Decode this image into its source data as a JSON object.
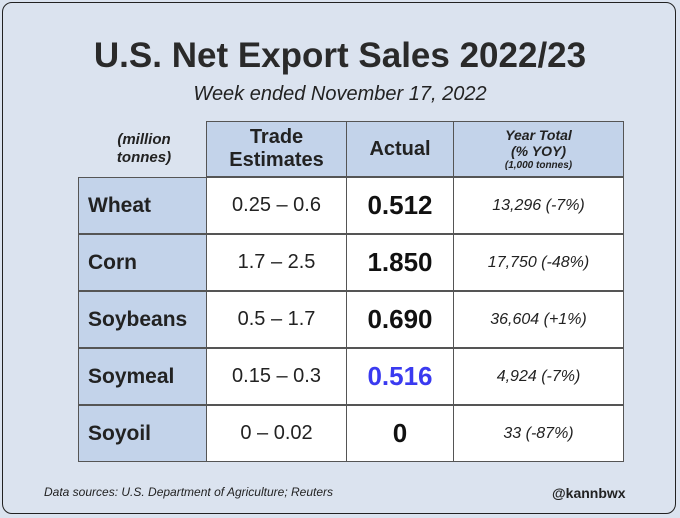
{
  "title": "U.S. Net Export Sales 2022/23",
  "subtitle": "Week ended November 17, 2022",
  "header": {
    "unit_line1": "(million",
    "unit_line2": "tonnes)",
    "trade_line1": "Trade",
    "trade_line2": "Estimates",
    "actual": "Actual",
    "year_line1": "Year Total",
    "year_line2": "(% YOY)",
    "year_line3": "(1,000 tonnes)"
  },
  "rows": [
    {
      "commodity": "Wheat",
      "trade_estimates": "0.25 – 0.6",
      "actual": "0.512",
      "year_total": "13,296 (-7%)",
      "actual_color": "#111111"
    },
    {
      "commodity": "Corn",
      "trade_estimates": "1.7 – 2.5",
      "actual": "1.850",
      "year_total": "17,750 (-48%)",
      "actual_color": "#111111"
    },
    {
      "commodity": "Soybeans",
      "trade_estimates": "0.5 – 1.7",
      "actual": "0.690",
      "year_total": "36,604 (+1%)",
      "actual_color": "#111111"
    },
    {
      "commodity": "Soymeal",
      "trade_estimates": "0.15 – 0.3",
      "actual": "0.516",
      "year_total": "4,924 (-7%)",
      "actual_color": "#3a3af0"
    },
    {
      "commodity": "Soyoil",
      "trade_estimates": "0 – 0.02",
      "actual": "0",
      "year_total": "33 (-87%)",
      "actual_color": "#111111"
    }
  ],
  "footer": {
    "sources": "Data sources: U.S. Department of Agriculture; Reuters",
    "handle": "@kannbwx"
  },
  "colors": {
    "background": "#dbe3ef",
    "header_fill": "#c3d3ea",
    "highlight_blue": "#3a3af0"
  }
}
